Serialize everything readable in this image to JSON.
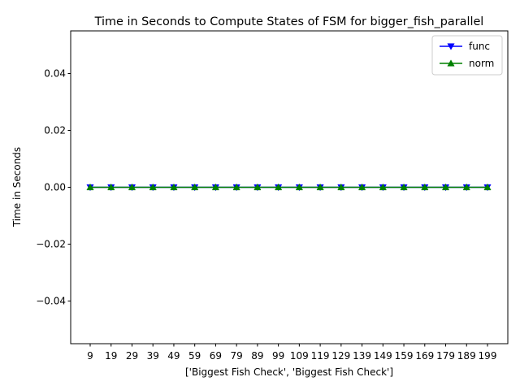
{
  "chart_data": {
    "type": "line",
    "title": "Time in Seconds to Compute States of FSM for bigger_fish_parallel",
    "xlabel": "['Biggest Fish Check', 'Biggest Fish Check']",
    "ylabel": "Time in Seconds",
    "x": [
      "9",
      "19",
      "29",
      "39",
      "49",
      "59",
      "69",
      "79",
      "89",
      "99",
      "109",
      "119",
      "129",
      "139",
      "149",
      "159",
      "169",
      "179",
      "189",
      "199"
    ],
    "ylim": [
      -0.055,
      0.055
    ],
    "yticks": [
      -0.04,
      -0.02,
      0.0,
      0.02,
      0.04
    ],
    "ytick_labels": [
      "−0.04",
      "−0.02",
      "0.00",
      "0.02",
      "0.04"
    ],
    "grid": false,
    "legend_position": "top-right",
    "series": [
      {
        "name": "func",
        "color": "#0000ff",
        "marker": "triangle-down",
        "values": [
          0,
          0,
          0,
          0,
          0,
          0,
          0,
          0,
          0,
          0,
          0,
          0,
          0,
          0,
          0,
          0,
          0,
          0,
          0,
          0
        ]
      },
      {
        "name": "norm",
        "color": "#008000",
        "marker": "triangle-up",
        "values": [
          0,
          0,
          0,
          0,
          0,
          0,
          0,
          0,
          0,
          0,
          0,
          0,
          0,
          0,
          0,
          0,
          0,
          0,
          0,
          0
        ]
      }
    ]
  }
}
